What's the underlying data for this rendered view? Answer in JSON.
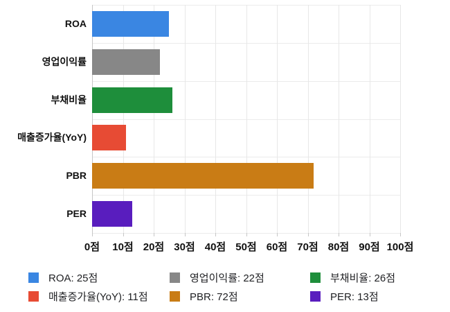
{
  "chart_data": {
    "type": "bar",
    "orientation": "horizontal",
    "title": "",
    "categories": [
      "ROA",
      "영업이익률",
      "부채비율",
      "매출증가율(YoY)",
      "PBR",
      "PER"
    ],
    "values": [
      25,
      22,
      26,
      11,
      72,
      13
    ],
    "colors": [
      "#3A86E2",
      "#878787",
      "#1E8E3B",
      "#E74B34",
      "#C97C15",
      "#591DBE"
    ],
    "unit": "점",
    "xlabel": "",
    "ylabel": "",
    "xlim": [
      0,
      100
    ],
    "x_tick_values": [
      0,
      10,
      20,
      30,
      40,
      50,
      60,
      70,
      80,
      90,
      100
    ],
    "x_tick_labels": [
      "0점",
      "10점",
      "20점",
      "30점",
      "40점",
      "50점",
      "60점",
      "70점",
      "80점",
      "90점",
      "100점"
    ],
    "grid": true,
    "legend": {
      "position": "bottom",
      "items": [
        {
          "label": "ROA: 25점",
          "color": "#3A86E2"
        },
        {
          "label": "영업이익률: 22점",
          "color": "#878787"
        },
        {
          "label": "부채비율: 26점",
          "color": "#1E8E3B"
        },
        {
          "label": "매출증가율(YoY): 11점",
          "color": "#E74B34"
        },
        {
          "label": "PBR: 72점",
          "color": "#C97C15"
        },
        {
          "label": "PER: 13점",
          "color": "#591DBE"
        }
      ]
    }
  }
}
